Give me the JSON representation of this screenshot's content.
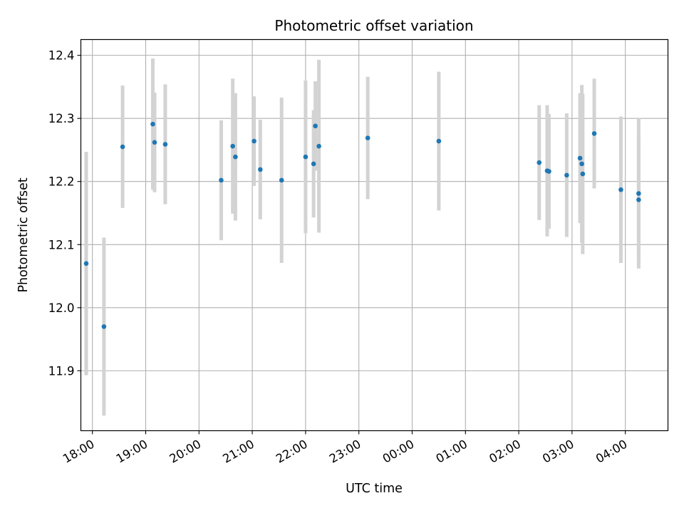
{
  "chart_data": {
    "type": "scatter",
    "title": "Photometric offset variation",
    "xlabel": "UTC time",
    "ylabel": "Photometric offset",
    "x_unit": "UTC time",
    "xlim": [
      "17:47",
      "04:48 +1d"
    ],
    "ylim": [
      11.805,
      12.425
    ],
    "grid": true,
    "x_ticks": [
      "18:00",
      "19:00",
      "20:00",
      "21:00",
      "22:00",
      "23:00",
      "00:00",
      "01:00",
      "02:00",
      "03:00",
      "04:00"
    ],
    "y_ticks": [
      11.9,
      12.0,
      12.1,
      12.2,
      12.3,
      12.4
    ],
    "y_tick_labels": [
      "11.9",
      "12.0",
      "12.1",
      "12.2",
      "12.3",
      "12.4"
    ],
    "marker_color": "#1f77b4",
    "errorbar_color": "#d3d3d3",
    "points": [
      {
        "x": "17:53",
        "y": 12.07,
        "yerr": 0.177
      },
      {
        "x": "18:13",
        "y": 11.97,
        "yerr": 0.141
      },
      {
        "x": "18:34",
        "y": 12.255,
        "yerr": 0.097
      },
      {
        "x": "19:08",
        "y": 12.291,
        "yerr": 0.104
      },
      {
        "x": "19:10",
        "y": 12.262,
        "yerr": 0.079
      },
      {
        "x": "19:22",
        "y": 12.259,
        "yerr": 0.095
      },
      {
        "x": "20:25",
        "y": 12.202,
        "yerr": 0.095
      },
      {
        "x": "20:38",
        "y": 12.256,
        "yerr": 0.107
      },
      {
        "x": "20:41",
        "y": 12.239,
        "yerr": 0.101
      },
      {
        "x": "21:02",
        "y": 12.264,
        "yerr": 0.071
      },
      {
        "x": "21:09",
        "y": 12.219,
        "yerr": 0.079
      },
      {
        "x": "21:33",
        "y": 12.202,
        "yerr": 0.131
      },
      {
        "x": "22:00",
        "y": 12.239,
        "yerr": 0.121
      },
      {
        "x": "22:09",
        "y": 12.228,
        "yerr": 0.085
      },
      {
        "x": "22:11",
        "y": 12.288,
        "yerr": 0.071
      },
      {
        "x": "22:15",
        "y": 12.256,
        "yerr": 0.137
      },
      {
        "x": "23:10",
        "y": 12.269,
        "yerr": 0.097
      },
      {
        "x": "00:30 +1d",
        "y": 12.264,
        "yerr": 0.11
      },
      {
        "x": "02:23 +1d",
        "y": 12.23,
        "yerr": 0.091
      },
      {
        "x": "02:32 +1d",
        "y": 12.217,
        "yerr": 0.104
      },
      {
        "x": "02:34 +1d",
        "y": 12.216,
        "yerr": 0.091
      },
      {
        "x": "02:54 +1d",
        "y": 12.21,
        "yerr": 0.098
      },
      {
        "x": "03:09 +1d",
        "y": 12.237,
        "yerr": 0.103
      },
      {
        "x": "03:11 +1d",
        "y": 12.228,
        "yerr": 0.125
      },
      {
        "x": "03:12 +1d",
        "y": 12.212,
        "yerr": 0.127
      },
      {
        "x": "03:25 +1d",
        "y": 12.276,
        "yerr": 0.087
      },
      {
        "x": "03:55 +1d",
        "y": 12.187,
        "yerr": 0.116
      },
      {
        "x": "04:15 +1d",
        "y": 12.181,
        "yerr": 0.119
      },
      {
        "x": "04:15 +1d",
        "y": 12.171,
        "yerr": 0.1
      }
    ]
  }
}
